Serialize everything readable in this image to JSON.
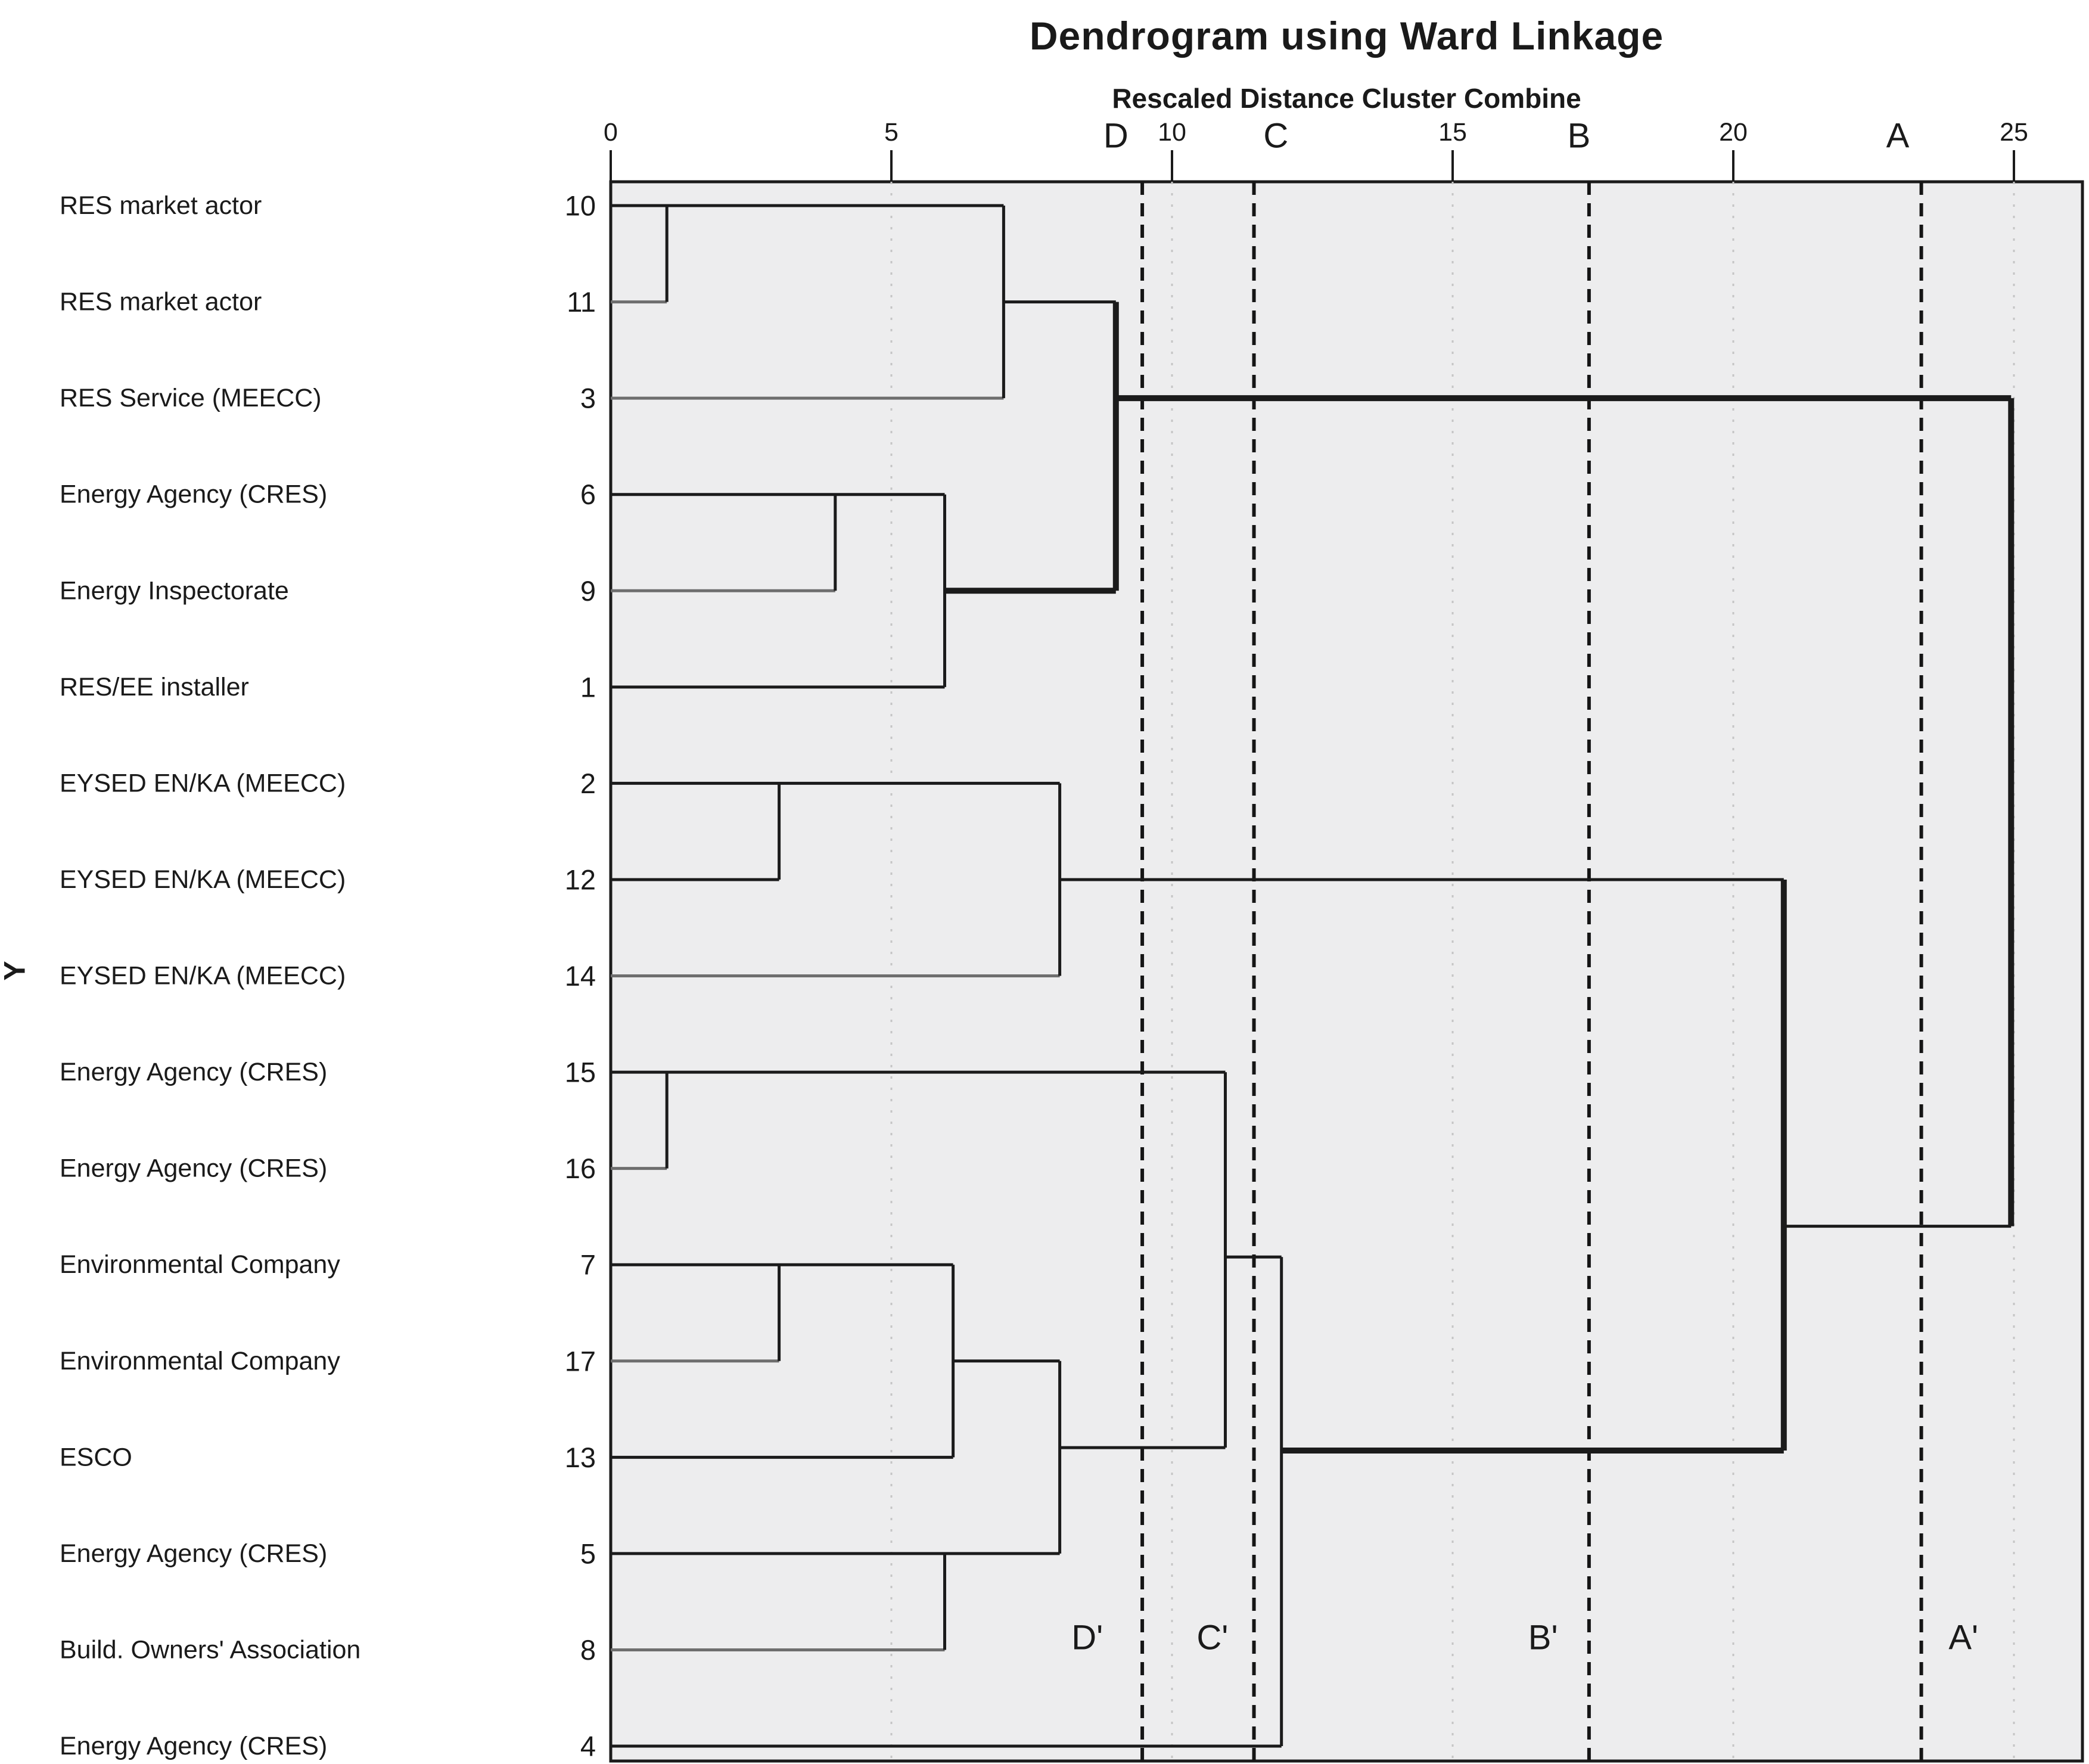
{
  "title": "Dendrogram using Ward Linkage",
  "subtitle": "Rescaled Distance Cluster Combine",
  "y_axis_label": "Y",
  "chart_data": {
    "type": "dendrogram",
    "linkage": "Ward",
    "x_axis": {
      "tick_values": [
        0,
        5,
        10,
        15,
        20,
        25
      ],
      "range": [
        0,
        26.2
      ],
      "title": "Rescaled Distance Cluster Combine"
    },
    "leaves": [
      {
        "case": "10",
        "label": "RES market actor"
      },
      {
        "case": "11",
        "label": "RES market actor"
      },
      {
        "case": "3",
        "label": "RES Service (MEECC)"
      },
      {
        "case": "6",
        "label": "Energy Agency (CRES)"
      },
      {
        "case": "9",
        "label": "Energy Inspectorate"
      },
      {
        "case": "1",
        "label": "RES/EE installer"
      },
      {
        "case": "2",
        "label": "EYSED EN/KA (MEECC)"
      },
      {
        "case": "12",
        "label": "EYSED EN/KA (MEECC)"
      },
      {
        "case": "14",
        "label": "EYSED EN/KA (MEECC)"
      },
      {
        "case": "15",
        "label": "Energy Agency (CRES)"
      },
      {
        "case": "16",
        "label": "Energy Agency (CRES)"
      },
      {
        "case": "7",
        "label": "Environmental Company"
      },
      {
        "case": "17",
        "label": "Environmental Company"
      },
      {
        "case": "13",
        "label": "ESCO"
      },
      {
        "case": "5",
        "label": "Energy Agency (CRES)"
      },
      {
        "case": "8",
        "label": "Build. Owners' Association"
      },
      {
        "case": "4",
        "label": "Energy Agency (CRES)"
      }
    ],
    "merges": [
      {
        "clusters": [
          "10",
          "11"
        ],
        "distance": 1.0
      },
      {
        "clusters": [
          "10+11",
          "3"
        ],
        "distance": 7.0
      },
      {
        "clusters": [
          "6",
          "9"
        ],
        "distance": 4.0
      },
      {
        "clusters": [
          "6+9",
          "1"
        ],
        "distance": 5.95
      },
      {
        "clusters": [
          "10+11+3",
          "6+9+1"
        ],
        "distance": 9.0
      },
      {
        "clusters": [
          "2",
          "12"
        ],
        "distance": 3.0
      },
      {
        "clusters": [
          "2+12",
          "14"
        ],
        "distance": 8.0
      },
      {
        "clusters": [
          "15",
          "16"
        ],
        "distance": 1.0
      },
      {
        "clusters": [
          "7",
          "17"
        ],
        "distance": 3.0
      },
      {
        "clusters": [
          "7+17",
          "13"
        ],
        "distance": 6.1
      },
      {
        "clusters": [
          "5",
          "8"
        ],
        "distance": 5.95
      },
      {
        "clusters": [
          "7+17+13",
          "5+8"
        ],
        "distance": 8.0
      },
      {
        "clusters": [
          "15+16",
          "7+17+13+5+8"
        ],
        "distance": 10.95
      },
      {
        "clusters": [
          "15+16+7+17+13+5+8",
          "4"
        ],
        "distance": 11.95
      },
      {
        "clusters": [
          "2+12+14",
          "15+16+7+17+13+5+8+4"
        ],
        "distance": 20.9
      },
      {
        "clusters": [
          "10+11+3+6+9+1",
          "rest"
        ],
        "distance": 24.95
      }
    ],
    "segments": {
      "h": [
        [
          1,
          0,
          7.0,
          0
        ],
        [
          2,
          0,
          1.0,
          2
        ],
        [
          3,
          0,
          7.0,
          2
        ],
        [
          2,
          7.0,
          9.0,
          0
        ],
        [
          4,
          0,
          5.95,
          0
        ],
        [
          5,
          0,
          4.0,
          2
        ],
        [
          6,
          0,
          5.95,
          0
        ],
        [
          5,
          5.95,
          9.0,
          1
        ],
        [
          3,
          9.0,
          24.95,
          1
        ],
        [
          7,
          0,
          8.0,
          0
        ],
        [
          8,
          0,
          3.0,
          0
        ],
        [
          9,
          0,
          8.0,
          2
        ],
        [
          8,
          8.0,
          20.9,
          0
        ],
        [
          10,
          0,
          10.95,
          0
        ],
        [
          11,
          0,
          1.0,
          2
        ],
        [
          12,
          0,
          6.1,
          0
        ],
        [
          13,
          0,
          3.0,
          2
        ],
        [
          14,
          0,
          6.1,
          0
        ],
        [
          13,
          6.1,
          8.0,
          0
        ],
        [
          15,
          0,
          8.0,
          0
        ],
        [
          16,
          0,
          5.95,
          2
        ],
        [
          17,
          0,
          11.95,
          0
        ],
        [
          13.9,
          8.0,
          10.95,
          0
        ],
        [
          11.92,
          10.95,
          11.95,
          0
        ],
        [
          13.93,
          11.95,
          20.9,
          1
        ],
        [
          11.6,
          20.9,
          24.95,
          0
        ]
      ],
      "v": [
        [
          1.0,
          1,
          2,
          0
        ],
        [
          7.0,
          1,
          3,
          0
        ],
        [
          4.0,
          4,
          5,
          0
        ],
        [
          5.95,
          4,
          6,
          0
        ],
        [
          9.0,
          2,
          5,
          1
        ],
        [
          3.0,
          7,
          8,
          0
        ],
        [
          8.0,
          7,
          9,
          0
        ],
        [
          1.0,
          10,
          11,
          0
        ],
        [
          3.0,
          12,
          13,
          0
        ],
        [
          6.1,
          12,
          14,
          0
        ],
        [
          5.95,
          15,
          16,
          0
        ],
        [
          8.0,
          13,
          15,
          0
        ],
        [
          10.95,
          10,
          13.9,
          0
        ],
        [
          11.95,
          11.92,
          17,
          0
        ],
        [
          20.9,
          8,
          13.93,
          1
        ],
        [
          24.95,
          3,
          11.6,
          1
        ]
      ]
    },
    "cutoff_lines": [
      {
        "id": "D",
        "x": 9.47,
        "top_label": "D",
        "top_label_x": 9.0,
        "bottom_label": "D'",
        "bottom_label_x": 8.49
      },
      {
        "id": "C",
        "x": 11.46,
        "top_label": "C",
        "top_label_x": 11.85,
        "bottom_label": "C'",
        "bottom_label_x": 10.72
      },
      {
        "id": "B",
        "x": 17.43,
        "top_label": "B",
        "top_label_x": 17.25,
        "bottom_label": "B'",
        "bottom_label_x": 16.61
      },
      {
        "id": "A",
        "x": 23.35,
        "top_label": "A",
        "top_label_x": 22.93,
        "bottom_label": "A'",
        "bottom_label_x": 24.1
      }
    ],
    "layout_hints": {
      "grid": "dotted verticals at labeled ticks",
      "plot_background": "#ededee"
    },
    "colors": {
      "line": "#1b1b1b",
      "gray_line": "#6e6e6e",
      "grid": "#c5c5c5",
      "cutoff": "#151515",
      "plot_bg": "#ededee"
    }
  }
}
